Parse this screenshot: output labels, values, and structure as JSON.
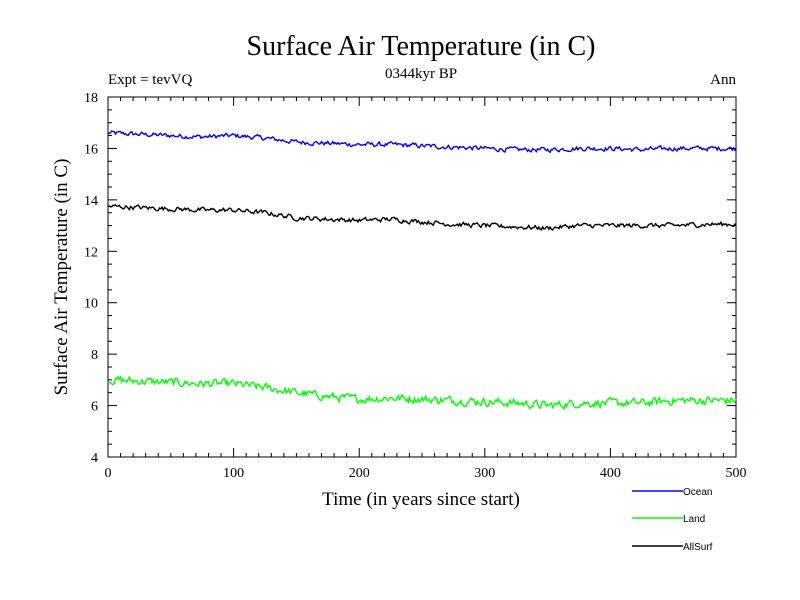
{
  "chart_data": {
    "type": "line",
    "title": "Surface Air Temperature (in C)",
    "subtitle": "0344kyr BP",
    "left_note": "Expt = tevVQ",
    "right_note": "Ann",
    "xlabel": "Time (in years since start)",
    "ylabel": "Surface Air Temperature (in C)",
    "xlim": [
      0,
      500
    ],
    "ylim": [
      4,
      18
    ],
    "xticks": [
      0,
      100,
      200,
      300,
      400,
      500
    ],
    "yticks": [
      4,
      6,
      8,
      10,
      12,
      14,
      16,
      18
    ],
    "xtick_labels": [
      "0",
      "100",
      "200",
      "300",
      "400",
      "500"
    ],
    "ytick_labels": [
      "4",
      "6",
      "8",
      "10",
      "12",
      "14",
      "16",
      "18"
    ],
    "grid": false,
    "legend_position": "bottom-right, outside plot",
    "series": [
      {
        "name": "Ocean",
        "color": "#0000ff",
        "x": [
          0,
          25,
          50,
          75,
          100,
          125,
          150,
          175,
          200,
          225,
          250,
          275,
          300,
          325,
          350,
          375,
          400,
          425,
          450,
          475,
          500
        ],
        "values": [
          16.6,
          16.55,
          16.5,
          16.45,
          16.5,
          16.4,
          16.25,
          16.2,
          16.15,
          16.15,
          16.1,
          16.05,
          16.0,
          15.95,
          15.95,
          16.0,
          16.0,
          15.95,
          16.0,
          16.0,
          16.0
        ]
      },
      {
        "name": "Land",
        "color": "#00ff00",
        "x": [
          0,
          25,
          50,
          75,
          100,
          125,
          150,
          175,
          200,
          225,
          250,
          275,
          300,
          325,
          350,
          375,
          400,
          425,
          450,
          475,
          500
        ],
        "values": [
          7.0,
          6.95,
          6.9,
          6.85,
          6.85,
          6.7,
          6.5,
          6.35,
          6.25,
          6.3,
          6.25,
          6.2,
          6.15,
          6.1,
          6.0,
          6.1,
          6.1,
          6.1,
          6.2,
          6.2,
          6.2
        ]
      },
      {
        "name": "AllSurf",
        "color": "#000000",
        "x": [
          0,
          25,
          50,
          75,
          100,
          125,
          150,
          175,
          200,
          225,
          250,
          275,
          300,
          325,
          350,
          375,
          400,
          425,
          450,
          475,
          500
        ],
        "values": [
          13.75,
          13.7,
          13.65,
          13.6,
          13.6,
          13.5,
          13.3,
          13.25,
          13.2,
          13.25,
          13.15,
          13.05,
          13.0,
          12.95,
          12.9,
          13.0,
          13.0,
          13.0,
          13.0,
          13.05,
          13.05
        ]
      }
    ]
  }
}
